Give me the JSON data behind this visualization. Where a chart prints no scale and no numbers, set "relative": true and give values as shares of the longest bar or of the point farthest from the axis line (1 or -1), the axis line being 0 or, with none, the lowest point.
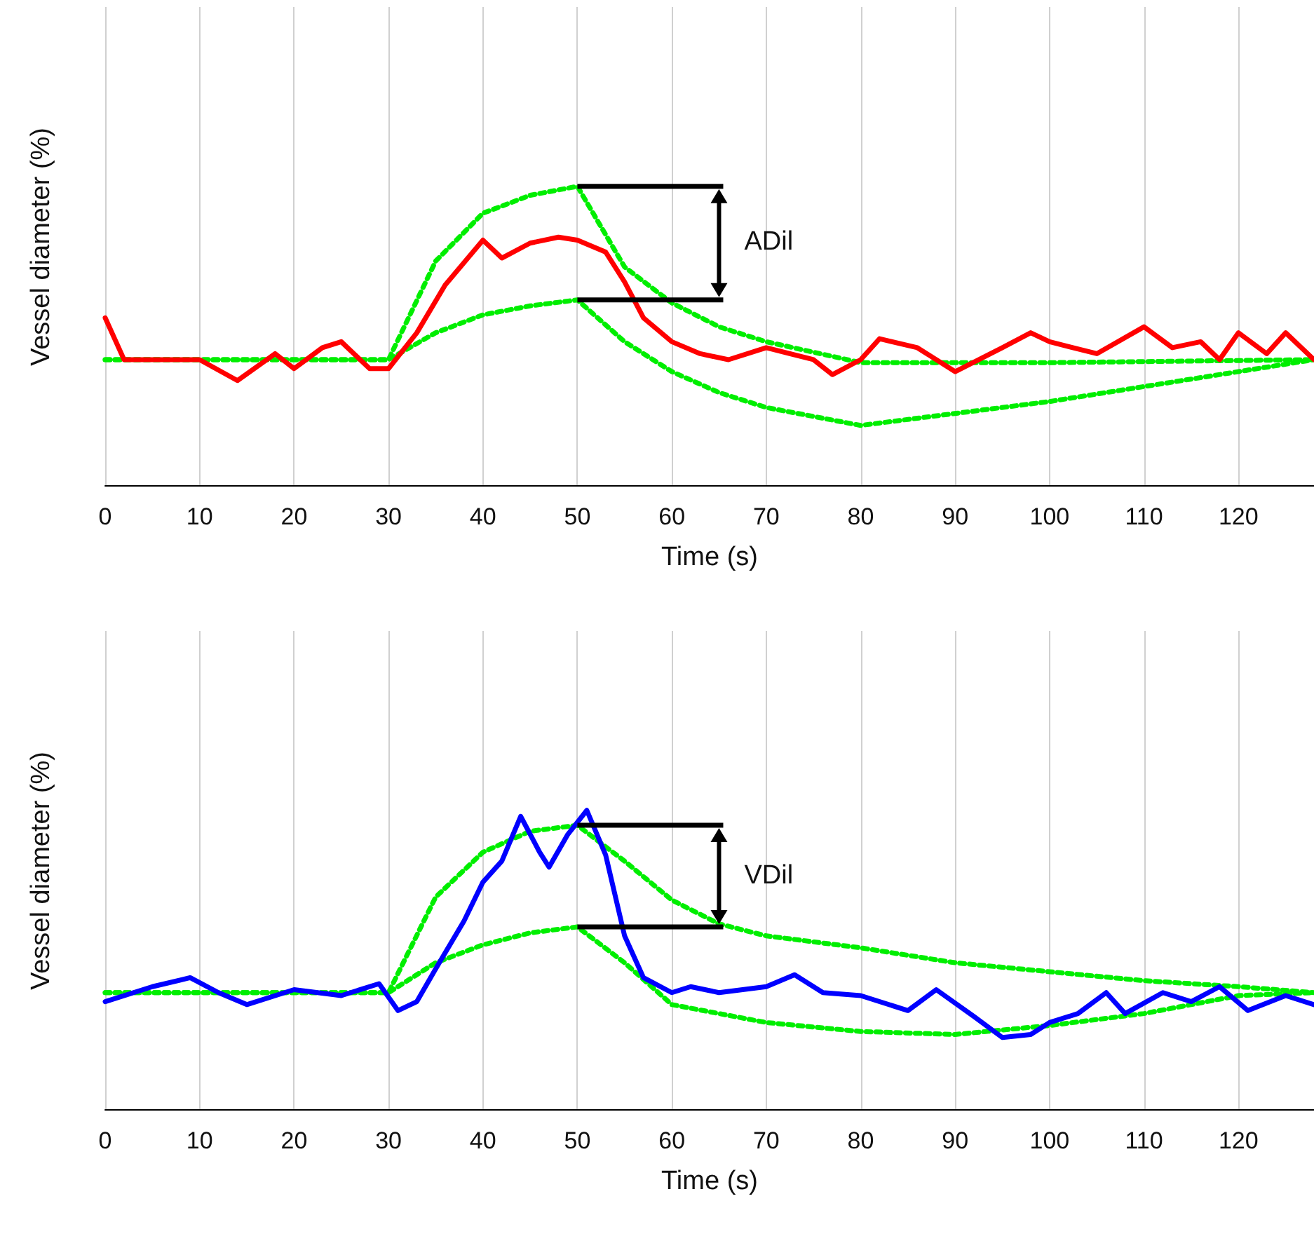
{
  "chart_data": [
    {
      "type": "line",
      "relative": true,
      "xlabel": "Time (s)",
      "ylabel": "Vessel diameter (%)",
      "xlim": [
        0,
        128
      ],
      "xticks": [
        0,
        10,
        20,
        30,
        40,
        50,
        60,
        70,
        80,
        90,
        100,
        110,
        120
      ],
      "grid": "x",
      "marker": "none",
      "annotations": [
        "ADil"
      ],
      "series": [
        {
          "color": "#ff0000",
          "line_style": "solid",
          "x": [
            0,
            2,
            5,
            10,
            14,
            18,
            20,
            23,
            25,
            28,
            30,
            33,
            36,
            40,
            42,
            45,
            48,
            50,
            53,
            55,
            57,
            60,
            63,
            66,
            70,
            75,
            77,
            80,
            82,
            86,
            90,
            95,
            98,
            100,
            105,
            110,
            113,
            116,
            118,
            120,
            123,
            125,
            128
          ],
          "values": [
            0.56,
            0.42,
            0.42,
            0.42,
            0.35,
            0.44,
            0.39,
            0.46,
            0.48,
            0.39,
            0.39,
            0.51,
            0.67,
            0.82,
            0.76,
            0.81,
            0.83,
            0.82,
            0.78,
            0.68,
            0.56,
            0.48,
            0.44,
            0.42,
            0.46,
            0.42,
            0.37,
            0.42,
            0.49,
            0.46,
            0.38,
            0.46,
            0.51,
            0.48,
            0.44,
            0.53,
            0.46,
            0.48,
            0.42,
            0.51,
            0.44,
            0.51,
            0.42
          ]
        },
        {
          "color": "#00ee00",
          "line_style": "dotted",
          "x": [
            0,
            30,
            35,
            40,
            45,
            50,
            55,
            60,
            65,
            70,
            80,
            90,
            100,
            128
          ],
          "values": [
            0.42,
            0.42,
            0.75,
            0.91,
            0.97,
            1.0,
            0.73,
            0.61,
            0.53,
            0.48,
            0.41,
            0.41,
            0.41,
            0.42
          ]
        },
        {
          "color": "#00ee00",
          "line_style": "dotted",
          "x": [
            0,
            30,
            35,
            40,
            45,
            50,
            55,
            60,
            65,
            70,
            80,
            100,
            128
          ],
          "values": [
            0.42,
            0.42,
            0.51,
            0.57,
            0.6,
            0.62,
            0.48,
            0.38,
            0.31,
            0.26,
            0.2,
            0.28,
            0.42
          ]
        }
      ]
    },
    {
      "type": "line",
      "relative": true,
      "xlabel": "Time (s)",
      "ylabel": "Vessel diameter (%)",
      "xlim": [
        0,
        128
      ],
      "xticks": [
        0,
        10,
        20,
        30,
        40,
        50,
        60,
        70,
        80,
        90,
        100,
        110,
        120
      ],
      "grid": "x",
      "marker": "none",
      "annotations": [
        "VDil"
      ],
      "series": [
        {
          "color": "#0000ff",
          "line_style": "solid",
          "x": [
            0,
            5,
            9,
            12,
            15,
            20,
            25,
            29,
            31,
            33,
            35,
            38,
            40,
            42,
            44,
            46,
            47,
            49,
            51,
            53,
            55,
            57,
            60,
            62,
            65,
            70,
            73,
            76,
            80,
            85,
            88,
            92,
            95,
            98,
            100,
            103,
            106,
            108,
            112,
            115,
            118,
            121,
            125,
            128
          ],
          "values": [
            0.36,
            0.41,
            0.44,
            0.39,
            0.35,
            0.4,
            0.38,
            0.42,
            0.33,
            0.36,
            0.47,
            0.63,
            0.76,
            0.83,
            0.98,
            0.86,
            0.81,
            0.92,
            1.0,
            0.85,
            0.58,
            0.44,
            0.39,
            0.41,
            0.39,
            0.41,
            0.45,
            0.39,
            0.38,
            0.33,
            0.4,
            0.31,
            0.24,
            0.25,
            0.29,
            0.32,
            0.39,
            0.32,
            0.39,
            0.36,
            0.41,
            0.33,
            0.38,
            0.35
          ]
        },
        {
          "color": "#00ee00",
          "line_style": "dotted",
          "x": [
            0,
            30,
            35,
            40,
            45,
            50,
            55,
            60,
            65,
            70,
            80,
            90,
            100,
            110,
            120,
            128
          ],
          "values": [
            0.39,
            0.39,
            0.71,
            0.86,
            0.93,
            0.95,
            0.83,
            0.7,
            0.62,
            0.58,
            0.54,
            0.49,
            0.46,
            0.43,
            0.41,
            0.39
          ]
        },
        {
          "color": "#00ee00",
          "line_style": "dotted",
          "x": [
            0,
            30,
            35,
            40,
            45,
            50,
            55,
            60,
            70,
            80,
            90,
            100,
            110,
            120,
            128
          ],
          "values": [
            0.39,
            0.39,
            0.49,
            0.55,
            0.59,
            0.61,
            0.49,
            0.35,
            0.29,
            0.26,
            0.25,
            0.28,
            0.32,
            0.38,
            0.39
          ]
        }
      ]
    }
  ]
}
